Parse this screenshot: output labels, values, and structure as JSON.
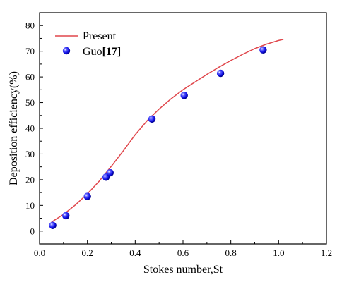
{
  "chart_data": {
    "type": "scatter",
    "xlabel": "Stokes number,St",
    "ylabel": "Deposition efficiency(%)",
    "xlim": [
      0.0,
      1.2
    ],
    "ylim": [
      -5,
      85
    ],
    "xticks": [
      0.0,
      0.2,
      0.4,
      0.6,
      0.8,
      1.0,
      1.2
    ],
    "xtick_labels": [
      "0.0",
      "0.2",
      "0.4",
      "0.6",
      "0.8",
      "1.0",
      "1.2"
    ],
    "yticks": [
      0,
      10,
      20,
      30,
      40,
      50,
      60,
      70,
      80
    ],
    "ytick_labels": [
      "0",
      "10",
      "20",
      "30",
      "40",
      "50",
      "60",
      "70",
      "80"
    ],
    "grid": false,
    "legend_position": "top-left",
    "series": [
      {
        "name": "Present",
        "kind": "line",
        "color": "#e0474c",
        "x": [
          0.05,
          0.1,
          0.15,
          0.2,
          0.25,
          0.3,
          0.35,
          0.4,
          0.45,
          0.5,
          0.55,
          0.6,
          0.65,
          0.7,
          0.75,
          0.8,
          0.85,
          0.9,
          0.95,
          1.0,
          1.02
        ],
        "y": [
          3.5,
          6.5,
          10.2,
          14.5,
          19.5,
          25.2,
          31.2,
          37.5,
          43.0,
          47.5,
          51.5,
          55.0,
          58.0,
          61.0,
          63.8,
          66.4,
          68.8,
          71.0,
          72.8,
          74.2,
          74.6
        ]
      },
      {
        "name": "Guo[17]",
        "kind": "scatter",
        "color": "#1a1aff",
        "x": [
          0.055,
          0.11,
          0.2,
          0.278,
          0.295,
          0.47,
          0.605,
          0.757,
          0.935
        ],
        "y": [
          2.2,
          6.0,
          13.5,
          21.0,
          22.7,
          43.6,
          52.8,
          61.4,
          70.5
        ]
      }
    ]
  },
  "legend": {
    "line_label": "Present",
    "marker_label_main": "Guo",
    "marker_label_ref": "[17]"
  }
}
